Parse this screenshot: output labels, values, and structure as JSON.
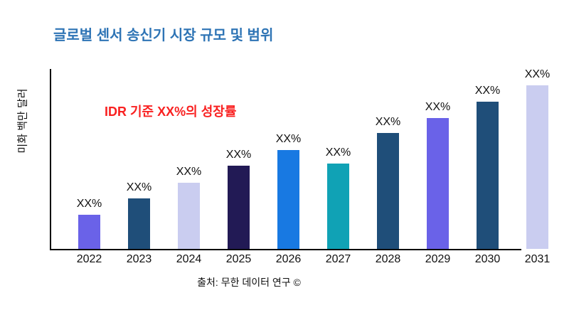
{
  "chart_data": {
    "type": "bar",
    "title": "글로벌 센서 송신기 시장 규모 및 범위",
    "title_color": "#2E74B5",
    "ylabel": "미화 백만 달러",
    "xlabel": "",
    "annotation": {
      "text": "IDR 기준 XX%의 성장률",
      "color": "#F92121"
    },
    "source": "출처: 무한 데이터 연구 ©",
    "categories": [
      "2022",
      "2023",
      "2024",
      "2025",
      "2026",
      "2027",
      "2028",
      "2029",
      "2030",
      "2031"
    ],
    "values": [
      48,
      71,
      93,
      117,
      139,
      120,
      163,
      184,
      207,
      230
    ],
    "value_note": "relative bar heights; data labels show XX% placeholders",
    "bar_labels": [
      "XX%",
      "XX%",
      "XX%",
      "XX%",
      "XX%",
      "XX%",
      "XX%",
      "XX%",
      "XX%",
      "XX%"
    ],
    "bar_colors": [
      "#6A62E8",
      "#1F4E79",
      "#CACDF0",
      "#221A55",
      "#1879E2",
      "#10A2B5",
      "#1F4E79",
      "#6A62E8",
      "#1F4E79",
      "#CACDF0"
    ],
    "axis_color": "#000000",
    "grid": false,
    "legend": false,
    "ylim": [
      0,
      250
    ]
  }
}
